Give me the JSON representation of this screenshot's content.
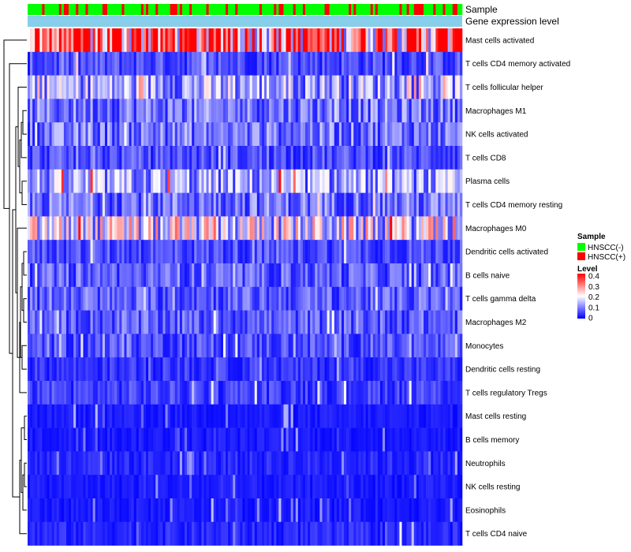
{
  "chart_data": {
    "type": "heatmap",
    "title": "",
    "annotation_tracks": [
      {
        "label": "Sample",
        "legend_title": "Sample",
        "categories": [
          "HNSCC(-)",
          "HNSCC(+)"
        ],
        "colors": {
          "HNSCC(-)": "#00FF00",
          "HNSCC(+)": "#FF0000"
        }
      },
      {
        "label": "Gene expression level",
        "color": "#87CEEB"
      }
    ],
    "rows": [
      "Mast cells activated",
      "T cells CD4 memory activated",
      "T cells follicular helper",
      "Macrophages M1",
      "NK cells activated",
      "T cells CD8",
      "Plasma cells",
      "T cells CD4 memory resting",
      "Macrophages M0",
      "Dendritic cells activated",
      "B cells naive",
      "T cells gamma delta",
      "Macrophages M2",
      "Monocytes",
      "Dendritic cells resting",
      "T cells regulatory  Tregs",
      "Mast cells resting",
      "B cells memory",
      "Neutrophils",
      "NK cells resting",
      "Eosinophils",
      "T cells CD4 naive"
    ],
    "row_mean_level": [
      0.33,
      0.06,
      0.13,
      0.09,
      0.09,
      0.06,
      0.12,
      0.09,
      0.17,
      0.06,
      0.07,
      0.07,
      0.07,
      0.06,
      0.04,
      0.05,
      0.02,
      0.02,
      0.03,
      0.02,
      0.02,
      0.03
    ],
    "row_max_level": [
      0.4,
      0.25,
      0.3,
      0.2,
      0.2,
      0.2,
      0.4,
      0.25,
      0.4,
      0.2,
      0.2,
      0.2,
      0.2,
      0.2,
      0.15,
      0.2,
      0.15,
      0.15,
      0.15,
      0.12,
      0.15,
      0.2
    ],
    "n_samples": 180,
    "color_scale": {
      "legend_title": "Level",
      "ticks": [
        "0.4",
        "0.3",
        "0.2",
        "0.1",
        "0"
      ],
      "range": [
        0,
        0.4
      ],
      "colors": [
        "#0000FF",
        "#FFFFFF",
        "#FF0000"
      ]
    },
    "legend_position": "right",
    "row_dendrogram": "left"
  }
}
